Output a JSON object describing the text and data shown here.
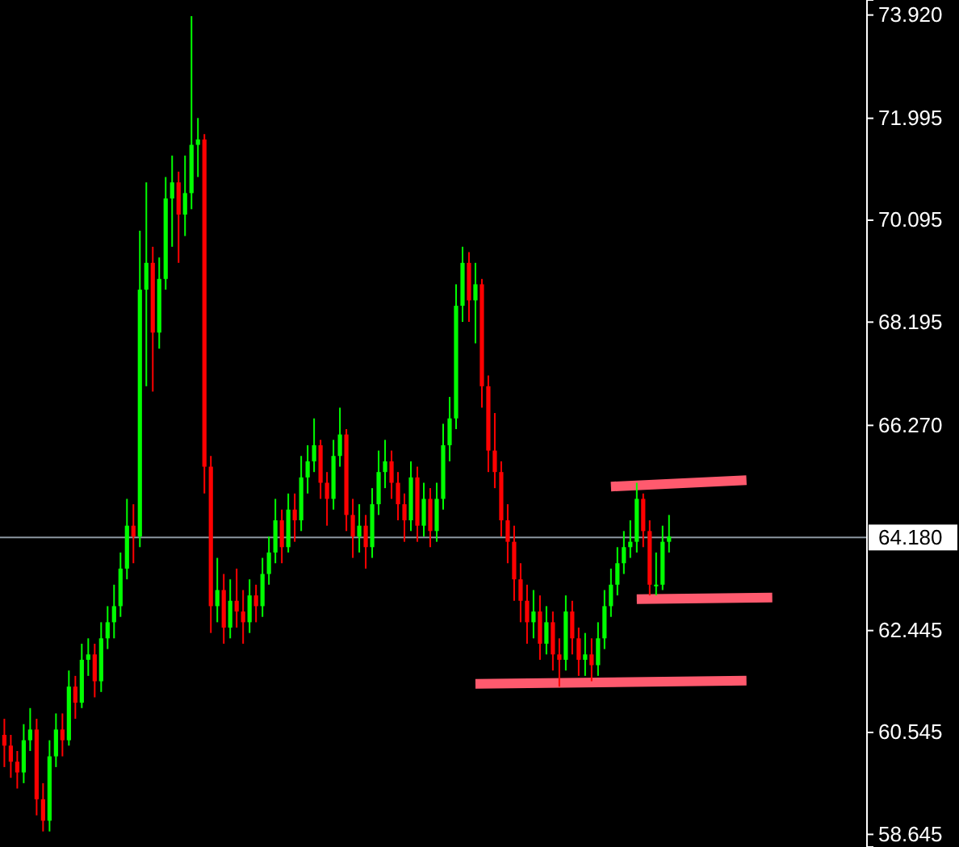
{
  "chart_data": {
    "type": "candlestick",
    "tick_labels": "y",
    "grid": false,
    "ylim": [
      58.41,
      74.2
    ],
    "yticks": [
      {
        "value": 58.645,
        "label": "58.645"
      },
      {
        "value": 60.545,
        "label": "60.545"
      },
      {
        "value": 62.445,
        "label": "62.445"
      },
      {
        "value": 66.27,
        "label": "66.270"
      },
      {
        "value": 68.195,
        "label": "68.195"
      },
      {
        "value": 70.095,
        "label": "70.095"
      },
      {
        "value": 71.995,
        "label": "71.995"
      },
      {
        "value": 73.92,
        "label": "73.920"
      }
    ],
    "ref_lines": [
      {
        "axis": "y",
        "value": 64.18,
        "label": "64.180",
        "color": "#8c96a0"
      }
    ],
    "categories": [
      null,
      null,
      null,
      null,
      null,
      null,
      null,
      null,
      null,
      null,
      null,
      null,
      null,
      null,
      null,
      null,
      null,
      null,
      null,
      null,
      null,
      null,
      null,
      null,
      null,
      null,
      null,
      null,
      null,
      null,
      null,
      null,
      null,
      null,
      null,
      null,
      null,
      null,
      null,
      null,
      null,
      null,
      null,
      null,
      null,
      null,
      null,
      null,
      null,
      null,
      null,
      null,
      null,
      null,
      null,
      null,
      null,
      null,
      null,
      null,
      null,
      null,
      null,
      null,
      null,
      null,
      null,
      null,
      null,
      null,
      null,
      null,
      null,
      null,
      null,
      null,
      null,
      null,
      null,
      null,
      null,
      null,
      null,
      null,
      null,
      null,
      null,
      null,
      null,
      null,
      null,
      null,
      null,
      null,
      null,
      null,
      null,
      null,
      null,
      null,
      null,
      null,
      null,
      null,
      null,
      null,
      null,
      null,
      null,
      null,
      null,
      null,
      null,
      null,
      null,
      null,
      null,
      null,
      null,
      null,
      null,
      null,
      null,
      null,
      null,
      null,
      null,
      null,
      null,
      null,
      null,
      null,
      null,
      null
    ],
    "ohlc": [
      [
        60.5,
        60.8,
        59.9,
        60.3
      ],
      [
        60.3,
        60.5,
        59.7,
        60.0
      ],
      [
        60.0,
        60.2,
        59.5,
        59.8
      ],
      [
        59.8,
        60.7,
        59.6,
        60.4
      ],
      [
        60.4,
        61.0,
        60.2,
        60.6
      ],
      [
        60.6,
        60.8,
        59.0,
        59.3
      ],
      [
        59.3,
        59.6,
        58.7,
        58.9
      ],
      [
        58.9,
        60.4,
        58.7,
        60.1
      ],
      [
        60.1,
        60.9,
        59.9,
        60.6
      ],
      [
        60.6,
        60.9,
        60.1,
        60.4
      ],
      [
        60.4,
        61.7,
        60.3,
        61.4
      ],
      [
        61.4,
        61.6,
        60.8,
        61.1
      ],
      [
        61.1,
        62.2,
        61.0,
        61.9
      ],
      [
        61.9,
        62.3,
        61.6,
        62.0
      ],
      [
        62.0,
        62.2,
        61.2,
        61.5
      ],
      [
        61.5,
        62.6,
        61.3,
        62.3
      ],
      [
        62.3,
        62.9,
        62.1,
        62.6
      ],
      [
        62.6,
        63.3,
        62.3,
        62.9
      ],
      [
        62.9,
        63.9,
        62.7,
        63.6
      ],
      [
        63.6,
        64.9,
        63.4,
        64.4
      ],
      [
        64.4,
        64.8,
        63.7,
        64.2
      ],
      [
        64.2,
        69.9,
        64.0,
        68.8
      ],
      [
        68.8,
        70.8,
        67.0,
        69.3
      ],
      [
        69.3,
        69.6,
        66.9,
        68.0
      ],
      [
        68.0,
        69.4,
        67.7,
        69.0
      ],
      [
        69.0,
        70.9,
        68.8,
        70.5
      ],
      [
        70.5,
        71.3,
        69.6,
        70.8
      ],
      [
        70.8,
        71.0,
        69.3,
        70.2
      ],
      [
        70.2,
        71.3,
        69.8,
        70.6
      ],
      [
        70.6,
        73.9,
        70.3,
        71.5
      ],
      [
        71.5,
        72.0,
        70.9,
        71.6
      ],
      [
        71.6,
        71.7,
        65.0,
        65.5
      ],
      [
        65.5,
        65.7,
        62.4,
        62.9
      ],
      [
        62.9,
        63.8,
        62.6,
        63.2
      ],
      [
        63.2,
        63.5,
        62.2,
        62.5
      ],
      [
        62.5,
        63.4,
        62.3,
        63.0
      ],
      [
        63.0,
        63.6,
        62.5,
        62.8
      ],
      [
        62.8,
        63.2,
        62.2,
        62.6
      ],
      [
        62.6,
        63.4,
        62.4,
        63.1
      ],
      [
        63.1,
        63.3,
        62.6,
        62.9
      ],
      [
        62.9,
        63.8,
        62.7,
        63.5
      ],
      [
        63.5,
        64.2,
        63.3,
        63.9
      ],
      [
        63.9,
        64.9,
        63.7,
        64.5
      ],
      [
        64.5,
        64.7,
        63.7,
        64.0
      ],
      [
        64.0,
        65.0,
        63.9,
        64.7
      ],
      [
        64.7,
        65.0,
        64.1,
        64.5
      ],
      [
        64.5,
        65.7,
        64.3,
        65.3
      ],
      [
        65.3,
        65.9,
        65.0,
        65.6
      ],
      [
        65.6,
        66.4,
        65.4,
        65.9
      ],
      [
        65.9,
        66.0,
        64.9,
        65.2
      ],
      [
        65.2,
        65.4,
        64.4,
        64.9
      ],
      [
        64.9,
        66.0,
        64.7,
        65.7
      ],
      [
        65.7,
        66.6,
        65.5,
        66.1
      ],
      [
        66.1,
        66.2,
        64.3,
        64.6
      ],
      [
        64.6,
        64.9,
        63.8,
        64.2
      ],
      [
        64.2,
        64.8,
        63.9,
        64.4
      ],
      [
        64.4,
        64.6,
        63.6,
        64.0
      ],
      [
        64.0,
        65.1,
        63.8,
        64.8
      ],
      [
        64.8,
        65.8,
        64.6,
        65.4
      ],
      [
        65.4,
        66.0,
        65.1,
        65.6
      ],
      [
        65.6,
        65.8,
        64.9,
        65.2
      ],
      [
        65.2,
        65.4,
        64.5,
        64.8
      ],
      [
        64.8,
        65.0,
        64.1,
        64.5
      ],
      [
        64.5,
        65.6,
        64.3,
        65.3
      ],
      [
        65.3,
        65.5,
        64.1,
        64.4
      ],
      [
        64.4,
        65.2,
        64.2,
        64.9
      ],
      [
        64.9,
        65.1,
        64.0,
        64.3
      ],
      [
        64.3,
        65.2,
        64.1,
        64.9
      ],
      [
        64.9,
        66.3,
        64.7,
        65.9
      ],
      [
        65.9,
        66.8,
        65.6,
        66.4
      ],
      [
        66.4,
        68.9,
        66.2,
        68.5
      ],
      [
        68.5,
        69.6,
        68.2,
        69.3
      ],
      [
        69.3,
        69.5,
        68.2,
        68.6
      ],
      [
        68.6,
        69.3,
        67.8,
        68.9
      ],
      [
        68.9,
        69.0,
        66.6,
        67.0
      ],
      [
        67.0,
        67.2,
        65.4,
        65.8
      ],
      [
        65.8,
        66.5,
        65.1,
        65.4
      ],
      [
        65.4,
        65.6,
        64.2,
        64.5
      ],
      [
        64.5,
        64.8,
        63.7,
        64.1
      ],
      [
        64.1,
        64.4,
        63.0,
        63.4
      ],
      [
        63.4,
        63.7,
        62.6,
        63.0
      ],
      [
        63.0,
        63.3,
        62.2,
        62.6
      ],
      [
        62.6,
        63.2,
        62.3,
        62.8
      ],
      [
        62.8,
        63.1,
        61.9,
        62.2
      ],
      [
        62.2,
        62.9,
        62.0,
        62.6
      ],
      [
        62.6,
        62.8,
        61.7,
        62.0
      ],
      [
        62.0,
        62.3,
        61.4,
        61.9
      ],
      [
        61.9,
        63.1,
        61.7,
        62.8
      ],
      [
        62.8,
        63.0,
        62.0,
        62.3
      ],
      [
        62.3,
        62.5,
        61.6,
        61.9
      ],
      [
        61.9,
        62.4,
        61.6,
        62.0
      ],
      [
        62.0,
        62.3,
        61.5,
        61.8
      ],
      [
        61.8,
        62.6,
        61.6,
        62.3
      ],
      [
        62.3,
        63.2,
        62.1,
        62.9
      ],
      [
        62.9,
        63.6,
        62.7,
        63.3
      ],
      [
        63.3,
        64.0,
        63.1,
        63.7
      ],
      [
        63.7,
        64.3,
        63.5,
        64.0
      ],
      [
        64.0,
        64.5,
        63.8,
        64.1
      ],
      [
        64.1,
        65.2,
        63.9,
        64.9
      ],
      [
        64.9,
        65.0,
        64.0,
        64.3
      ],
      [
        64.3,
        64.5,
        63.1,
        63.3
      ],
      [
        63.3,
        63.9,
        63.1,
        63.3
      ],
      [
        63.3,
        64.4,
        63.2,
        64.1
      ],
      [
        64.1,
        64.6,
        63.9,
        64.2
      ],
      null,
      null,
      null,
      null,
      null,
      null,
      null,
      null,
      null,
      null,
      null,
      null,
      null,
      null,
      null,
      null,
      null,
      null,
      null,
      null,
      null,
      null,
      null,
      null,
      null,
      null,
      null,
      null,
      null,
      null
    ],
    "colors": [
      "#ff0000",
      "#ff0000",
      "#ff0000",
      "#00ff00",
      "#00ff00",
      "#ff0000",
      "#ff0000",
      "#00ff00",
      "#00ff00",
      "#ff0000",
      "#00ff00",
      "#ff0000",
      "#00ff00",
      "#00ff00",
      "#ff0000",
      "#00ff00",
      "#00ff00",
      "#00ff00",
      "#00ff00",
      "#00ff00",
      "#ff0000",
      "#00ff00",
      "#00ff00",
      "#ff0000",
      "#00ff00",
      "#00ff00",
      "#00ff00",
      "#ff0000",
      "#00ff00",
      "#00ff00",
      "#00ff00",
      "#ff0000",
      "#ff0000",
      "#00ff00",
      "#ff0000",
      "#00ff00",
      "#ff0000",
      "#ff0000",
      "#00ff00",
      "#ff0000",
      "#00ff00",
      "#00ff00",
      "#00ff00",
      "#ff0000",
      "#00ff00",
      "#ff0000",
      "#00ff00",
      "#00ff00",
      "#00ff00",
      "#ff0000",
      "#ff0000",
      "#00ff00",
      "#00ff00",
      "#ff0000",
      "#ff0000",
      "#00ff00",
      "#ff0000",
      "#00ff00",
      "#00ff00",
      "#00ff00",
      "#ff0000",
      "#ff0000",
      "#ff0000",
      "#00ff00",
      "#ff0000",
      "#00ff00",
      "#ff0000",
      "#00ff00",
      "#00ff00",
      "#00ff00",
      "#00ff00",
      "#00ff00",
      "#ff0000",
      "#00ff00",
      "#ff0000",
      "#ff0000",
      "#ff0000",
      "#ff0000",
      "#ff0000",
      "#ff0000",
      "#ff0000",
      "#ff0000",
      "#00ff00",
      "#ff0000",
      "#00ff00",
      "#ff0000",
      "#ff0000",
      "#00ff00",
      "#ff0000",
      "#ff0000",
      "#00ff00",
      "#ff0000",
      "#00ff00",
      "#00ff00",
      "#00ff00",
      "#00ff00",
      "#00ff00",
      "#00ff00",
      "#00ff00",
      "#ff0000",
      "#ff0000",
      "#00ff00",
      "#00ff00",
      "#00ff00",
      null,
      null,
      null,
      null,
      null,
      null,
      null,
      null,
      null,
      null,
      null,
      null,
      null,
      null,
      null,
      null,
      null,
      null,
      null,
      null,
      null,
      null,
      null,
      null,
      null,
      null,
      null,
      null,
      null,
      null
    ],
    "series": [
      {
        "type": "line",
        "color": "#ff5a6e",
        "values": [
          null,
          null,
          null,
          null,
          null,
          null,
          null,
          null,
          null,
          null,
          null,
          null,
          null,
          null,
          null,
          null,
          null,
          null,
          null,
          null,
          null,
          null,
          null,
          null,
          null,
          null,
          null,
          null,
          null,
          null,
          null,
          null,
          null,
          null,
          null,
          null,
          null,
          null,
          null,
          null,
          null,
          null,
          null,
          null,
          null,
          null,
          null,
          null,
          null,
          null,
          null,
          null,
          null,
          null,
          null,
          null,
          null,
          null,
          null,
          null,
          null,
          null,
          null,
          null,
          null,
          null,
          null,
          null,
          null,
          null,
          null,
          null,
          null,
          null,
          null,
          null,
          null,
          null,
          null,
          null,
          null,
          null,
          null,
          null,
          null,
          null,
          null,
          null,
          null,
          null,
          null,
          null,
          null,
          null,
          65.13,
          null,
          null,
          null,
          null,
          null,
          null,
          null,
          null,
          null,
          null,
          null,
          null,
          null,
          null,
          null,
          null,
          null,
          null,
          null,
          null,
          65.25,
          null,
          null,
          null,
          null,
          null,
          null,
          null,
          null,
          null,
          null,
          null,
          null,
          null,
          null,
          null,
          null,
          null,
          null
        ]
      },
      {
        "type": "line",
        "color": "#ff5a6e",
        "values": [
          null,
          null,
          null,
          null,
          null,
          null,
          null,
          null,
          null,
          null,
          null,
          null,
          null,
          null,
          null,
          null,
          null,
          null,
          null,
          null,
          null,
          null,
          null,
          null,
          null,
          null,
          null,
          null,
          null,
          null,
          null,
          null,
          null,
          null,
          null,
          null,
          null,
          null,
          null,
          null,
          null,
          null,
          null,
          null,
          null,
          null,
          null,
          null,
          null,
          null,
          null,
          null,
          null,
          null,
          null,
          null,
          null,
          null,
          null,
          null,
          null,
          null,
          null,
          null,
          null,
          null,
          null,
          null,
          null,
          null,
          null,
          null,
          null,
          null,
          null,
          null,
          null,
          null,
          null,
          null,
          null,
          null,
          null,
          null,
          null,
          null,
          null,
          null,
          null,
          null,
          null,
          null,
          null,
          null,
          null,
          null,
          null,
          null,
          63.03,
          null,
          null,
          null,
          null,
          null,
          null,
          null,
          null,
          null,
          null,
          null,
          null,
          null,
          null,
          null,
          null,
          null,
          null,
          null,
          null,
          63.06,
          null,
          null,
          null,
          null,
          null,
          null,
          null,
          null,
          null,
          null,
          null,
          null,
          null,
          null
        ]
      },
      {
        "type": "line",
        "color": "#ff5a6e",
        "values": [
          null,
          null,
          null,
          null,
          null,
          null,
          null,
          null,
          null,
          null,
          null,
          null,
          null,
          null,
          null,
          null,
          null,
          null,
          null,
          null,
          null,
          null,
          null,
          null,
          null,
          null,
          null,
          null,
          null,
          null,
          null,
          null,
          null,
          null,
          null,
          null,
          null,
          null,
          null,
          null,
          null,
          null,
          null,
          null,
          null,
          null,
          null,
          null,
          null,
          null,
          null,
          null,
          null,
          null,
          null,
          null,
          null,
          null,
          null,
          null,
          null,
          null,
          null,
          null,
          null,
          null,
          null,
          null,
          null,
          null,
          null,
          null,
          null,
          61.45,
          null,
          null,
          null,
          null,
          null,
          null,
          null,
          null,
          null,
          null,
          null,
          null,
          null,
          null,
          null,
          null,
          null,
          null,
          null,
          null,
          null,
          null,
          null,
          null,
          null,
          null,
          null,
          null,
          null,
          null,
          null,
          null,
          null,
          null,
          null,
          null,
          null,
          null,
          null,
          null,
          null,
          61.51,
          null,
          null,
          null,
          null,
          null,
          null,
          null,
          null,
          null,
          null,
          null,
          null,
          null,
          null,
          null,
          null,
          null,
          null
        ]
      }
    ]
  }
}
